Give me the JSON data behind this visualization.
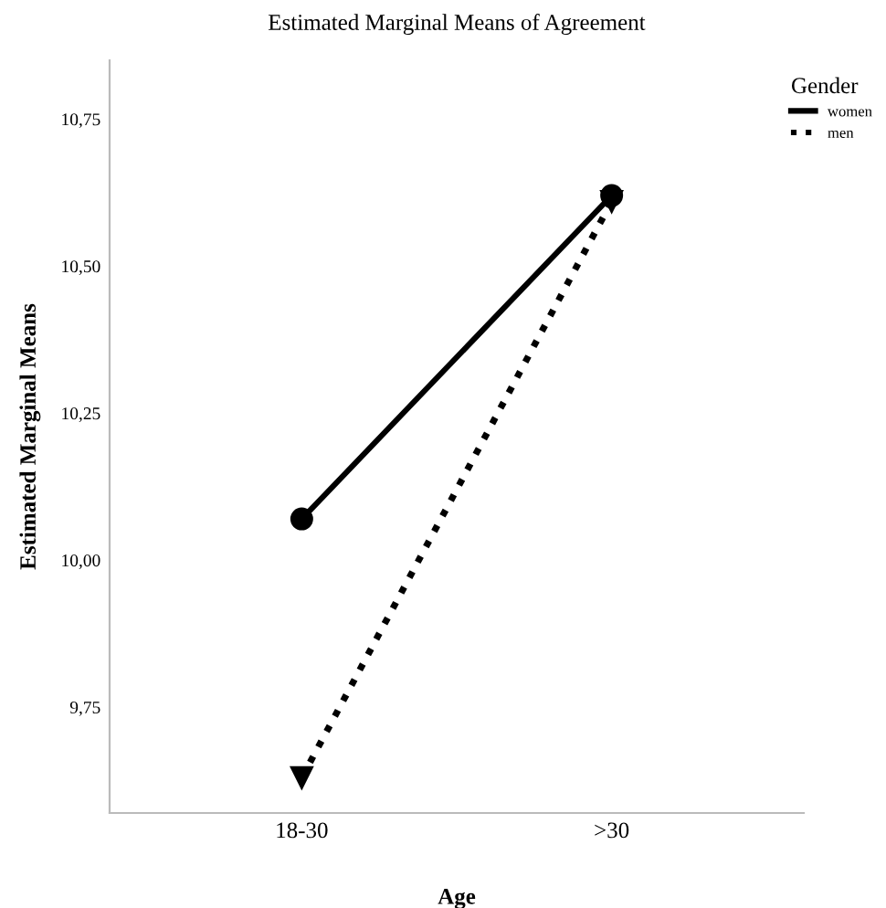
{
  "chart_data": {
    "type": "line",
    "title": "Estimated Marginal Means of Agreement",
    "xlabel": "Age",
    "ylabel": "Estimated Marginal Means",
    "legend_title": "Gender",
    "legend": "top right",
    "categories": [
      "18-30",
      ">30"
    ],
    "series": [
      {
        "name": "women",
        "color": "#000000",
        "values": [
          10.07,
          10.62
        ],
        "marker": "circle",
        "line_style": "solid"
      },
      {
        "name": "men",
        "color": "#000000",
        "values": [
          9.63,
          10.61
        ],
        "marker": "triangle",
        "line_style": "dotted"
      }
    ],
    "ylim": [
      9.57,
      10.85
    ],
    "yticks": [
      {
        "value": 9.75,
        "label": "9,75"
      },
      {
        "value": 10.0,
        "label": "10,00"
      },
      {
        "value": 10.25,
        "label": "10,25"
      },
      {
        "value": 10.5,
        "label": "10,50"
      },
      {
        "value": 10.75,
        "label": "10,75"
      }
    ],
    "grid": false
  }
}
